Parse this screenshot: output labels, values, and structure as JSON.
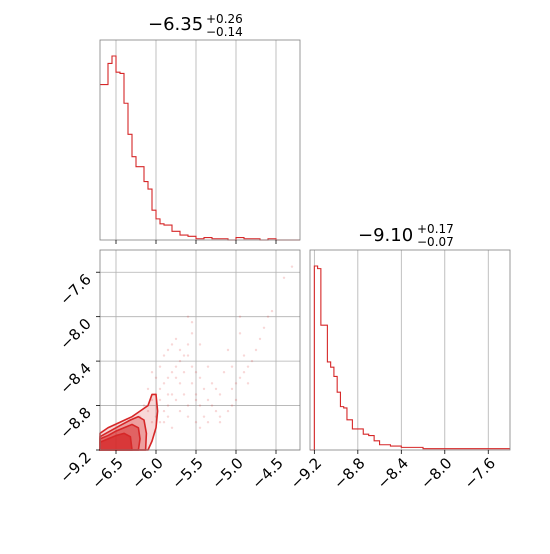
{
  "chart_data": [
    {
      "type": "histogram",
      "panel": "top-left marginal",
      "title": {
        "median": "−6.35",
        "plus": "+0.26",
        "minus": "−0.14"
      },
      "xlim": [
        -6.7,
        -4.2
      ],
      "xgrid": [
        -6.5,
        -6.0,
        -5.5,
        -5.0,
        -4.5
      ],
      "grid": true,
      "color": "#d62728",
      "bin_edges": [
        -6.7,
        -6.65,
        -6.6,
        -6.55,
        -6.5,
        -6.45,
        -6.4,
        -6.35,
        -6.3,
        -6.25,
        -6.2,
        -6.15,
        -6.1,
        -6.05,
        -6.0,
        -5.95,
        -5.9,
        -5.8,
        -5.7,
        -5.6,
        -5.5,
        -5.4,
        -5.3,
        -5.2,
        -5.1,
        -5.0,
        -4.9,
        -4.8,
        -4.7,
        -4.6,
        -4.5,
        -4.2
      ],
      "counts": [
        125,
        125,
        142,
        148,
        135,
        134,
        110,
        85,
        67,
        59,
        59,
        47,
        41,
        24,
        17,
        13,
        12,
        7,
        4,
        3,
        1,
        2,
        1,
        1,
        0,
        2,
        1,
        1,
        0,
        1,
        0
      ]
    },
    {
      "type": "histogram",
      "panel": "bottom-right marginal",
      "title": {
        "median": "−9.10",
        "plus": "+0.17",
        "minus": "−0.07"
      },
      "xlim": [
        -9.24,
        -7.4
      ],
      "xgrid": [
        -9.2,
        -8.8,
        -8.4,
        -8.0,
        -7.6
      ],
      "grid": true,
      "color": "#d62728",
      "bin_edges": [
        -9.24,
        -9.2,
        -9.17,
        -9.14,
        -9.11,
        -9.08,
        -9.05,
        -9.02,
        -8.99,
        -8.96,
        -8.93,
        -8.9,
        -8.85,
        -8.8,
        -8.75,
        -8.7,
        -8.65,
        -8.6,
        -8.5,
        -8.4,
        -8.3,
        -8.2,
        -8.1,
        -8.0,
        -7.9,
        -7.8,
        -7.7,
        -7.6,
        -7.4
      ],
      "counts": [
        0,
        140,
        138,
        95,
        95,
        67,
        63,
        56,
        44,
        33,
        32,
        23,
        16,
        16,
        12,
        11,
        7,
        4,
        3,
        2,
        2,
        1,
        1,
        1,
        1,
        1,
        1,
        1
      ]
    },
    {
      "type": "scatter",
      "panel": "bottom-left joint",
      "xlim": [
        -6.7,
        -4.2
      ],
      "ylim": [
        -9.2,
        -7.4
      ],
      "xticks": [
        "−6.5",
        "−6.0",
        "−5.5",
        "−5.0",
        "−4.5"
      ],
      "xtick_values": [
        -6.5,
        -6.0,
        -5.5,
        -5.0,
        -4.5
      ],
      "yticks": [
        "−9.2",
        "−8.8",
        "−8.4",
        "−8.0",
        "−7.6"
      ],
      "ytick_values": [
        -9.2,
        -8.8,
        -8.4,
        -8.0,
        -7.6
      ],
      "grid": true,
      "color": "#d62728",
      "points": [
        [
          -6.05,
          -8.75
        ],
        [
          -6.0,
          -8.7
        ],
        [
          -5.95,
          -8.65
        ],
        [
          -5.9,
          -8.6
        ],
        [
          -5.85,
          -8.55
        ],
        [
          -5.8,
          -8.5
        ],
        [
          -5.75,
          -8.45
        ],
        [
          -5.7,
          -8.4
        ],
        [
          -5.65,
          -8.35
        ],
        [
          -5.6,
          -8.25
        ],
        [
          -5.55,
          -8.15
        ],
        [
          -5.6,
          -8.35
        ],
        [
          -5.55,
          -8.45
        ],
        [
          -5.5,
          -8.5
        ],
        [
          -5.45,
          -8.55
        ],
        [
          -5.4,
          -8.65
        ],
        [
          -5.35,
          -8.75
        ],
        [
          -5.3,
          -8.8
        ],
        [
          -5.25,
          -8.85
        ],
        [
          -5.2,
          -8.9
        ],
        [
          -5.5,
          -8.7
        ],
        [
          -5.45,
          -8.8
        ],
        [
          -5.65,
          -8.7
        ],
        [
          -5.7,
          -8.6
        ],
        [
          -5.75,
          -8.75
        ],
        [
          -5.8,
          -8.7
        ],
        [
          -5.85,
          -8.8
        ],
        [
          -5.9,
          -8.85
        ],
        [
          -5.95,
          -8.75
        ],
        [
          -6.0,
          -8.9
        ],
        [
          -5.9,
          -8.95
        ],
        [
          -5.85,
          -8.9
        ],
        [
          -5.7,
          -8.85
        ],
        [
          -5.6,
          -8.9
        ],
        [
          -5.5,
          -8.95
        ],
        [
          -5.4,
          -8.9
        ],
        [
          -5.0,
          -8.6
        ],
        [
          -4.95,
          -8.55
        ],
        [
          -5.05,
          -8.65
        ],
        [
          -4.9,
          -8.5
        ],
        [
          -4.85,
          -8.45
        ],
        [
          -4.8,
          -8.4
        ],
        [
          -4.75,
          -8.3
        ],
        [
          -4.7,
          -8.2
        ],
        [
          -4.65,
          -8.1
        ],
        [
          -4.6,
          -8.0
        ],
        [
          -4.55,
          -7.95
        ],
        [
          -5.0,
          -8.75
        ],
        [
          -5.05,
          -8.8
        ],
        [
          -5.1,
          -8.85
        ],
        [
          -4.95,
          -8.0
        ],
        [
          -4.95,
          -8.15
        ],
        [
          -5.1,
          -8.3
        ],
        [
          -5.2,
          -8.7
        ],
        [
          -5.3,
          -8.6
        ],
        [
          -5.35,
          -8.45
        ],
        [
          -5.45,
          -8.25
        ],
        [
          -5.55,
          -8.05
        ],
        [
          -5.6,
          -8.0
        ],
        [
          -4.4,
          -7.65
        ],
        [
          -4.3,
          -7.55
        ],
        [
          -6.1,
          -8.85
        ],
        [
          -6.15,
          -8.8
        ],
        [
          -6.2,
          -8.9
        ],
        [
          -6.05,
          -8.95
        ],
        [
          -6.0,
          -8.55
        ],
        [
          -5.95,
          -8.45
        ],
        [
          -5.9,
          -8.35
        ],
        [
          -5.85,
          -8.3
        ],
        [
          -5.8,
          -8.25
        ],
        [
          -5.75,
          -8.2
        ],
        [
          -5.7,
          -8.3
        ],
        [
          -5.65,
          -8.5
        ],
        [
          -5.55,
          -8.6
        ],
        [
          -5.5,
          -8.75
        ],
        [
          -5.35,
          -8.95
        ],
        [
          -5.25,
          -8.65
        ],
        [
          -5.15,
          -8.5
        ],
        [
          -5.05,
          -8.45
        ],
        [
          -4.9,
          -8.35
        ],
        [
          -4.85,
          -8.6
        ],
        [
          -5.2,
          -8.95
        ],
        [
          -5.45,
          -9.0
        ],
        [
          -5.8,
          -9.0
        ],
        [
          -6.1,
          -8.65
        ],
        [
          -6.05,
          -8.5
        ],
        [
          -5.95,
          -8.95
        ],
        [
          -5.85,
          -8.7
        ],
        [
          -5.75,
          -8.55
        ],
        [
          -5.6,
          -8.8
        ]
      ],
      "contour_levels": [
        [
          [
            -6.7,
            -9.2
          ],
          [
            -6.7,
            -9.05
          ],
          [
            -6.6,
            -9.0
          ],
          [
            -6.45,
            -8.95
          ],
          [
            -6.3,
            -8.9
          ],
          [
            -6.2,
            -8.85
          ],
          [
            -6.1,
            -8.8
          ],
          [
            -6.05,
            -8.7
          ],
          [
            -6.0,
            -8.7
          ],
          [
            -5.98,
            -8.85
          ],
          [
            -6.0,
            -9.0
          ],
          [
            -6.05,
            -9.12
          ],
          [
            -6.1,
            -9.2
          ]
        ],
        [
          [
            -6.7,
            -9.2
          ],
          [
            -6.7,
            -9.08
          ],
          [
            -6.6,
            -9.04
          ],
          [
            -6.45,
            -8.98
          ],
          [
            -6.32,
            -8.93
          ],
          [
            -6.22,
            -8.9
          ],
          [
            -6.15,
            -8.93
          ],
          [
            -6.12,
            -9.05
          ],
          [
            -6.13,
            -9.2
          ]
        ],
        [
          [
            -6.7,
            -9.2
          ],
          [
            -6.7,
            -9.1
          ],
          [
            -6.6,
            -9.07
          ],
          [
            -6.5,
            -9.03
          ],
          [
            -6.4,
            -9.0
          ],
          [
            -6.3,
            -8.97
          ],
          [
            -6.22,
            -9.0
          ],
          [
            -6.2,
            -9.1
          ],
          [
            -6.22,
            -9.2
          ]
        ],
        [
          [
            -6.7,
            -9.2
          ],
          [
            -6.7,
            -9.13
          ],
          [
            -6.6,
            -9.1
          ],
          [
            -6.5,
            -9.07
          ],
          [
            -6.4,
            -9.05
          ],
          [
            -6.32,
            -9.08
          ],
          [
            -6.3,
            -9.2
          ]
        ]
      ]
    }
  ]
}
